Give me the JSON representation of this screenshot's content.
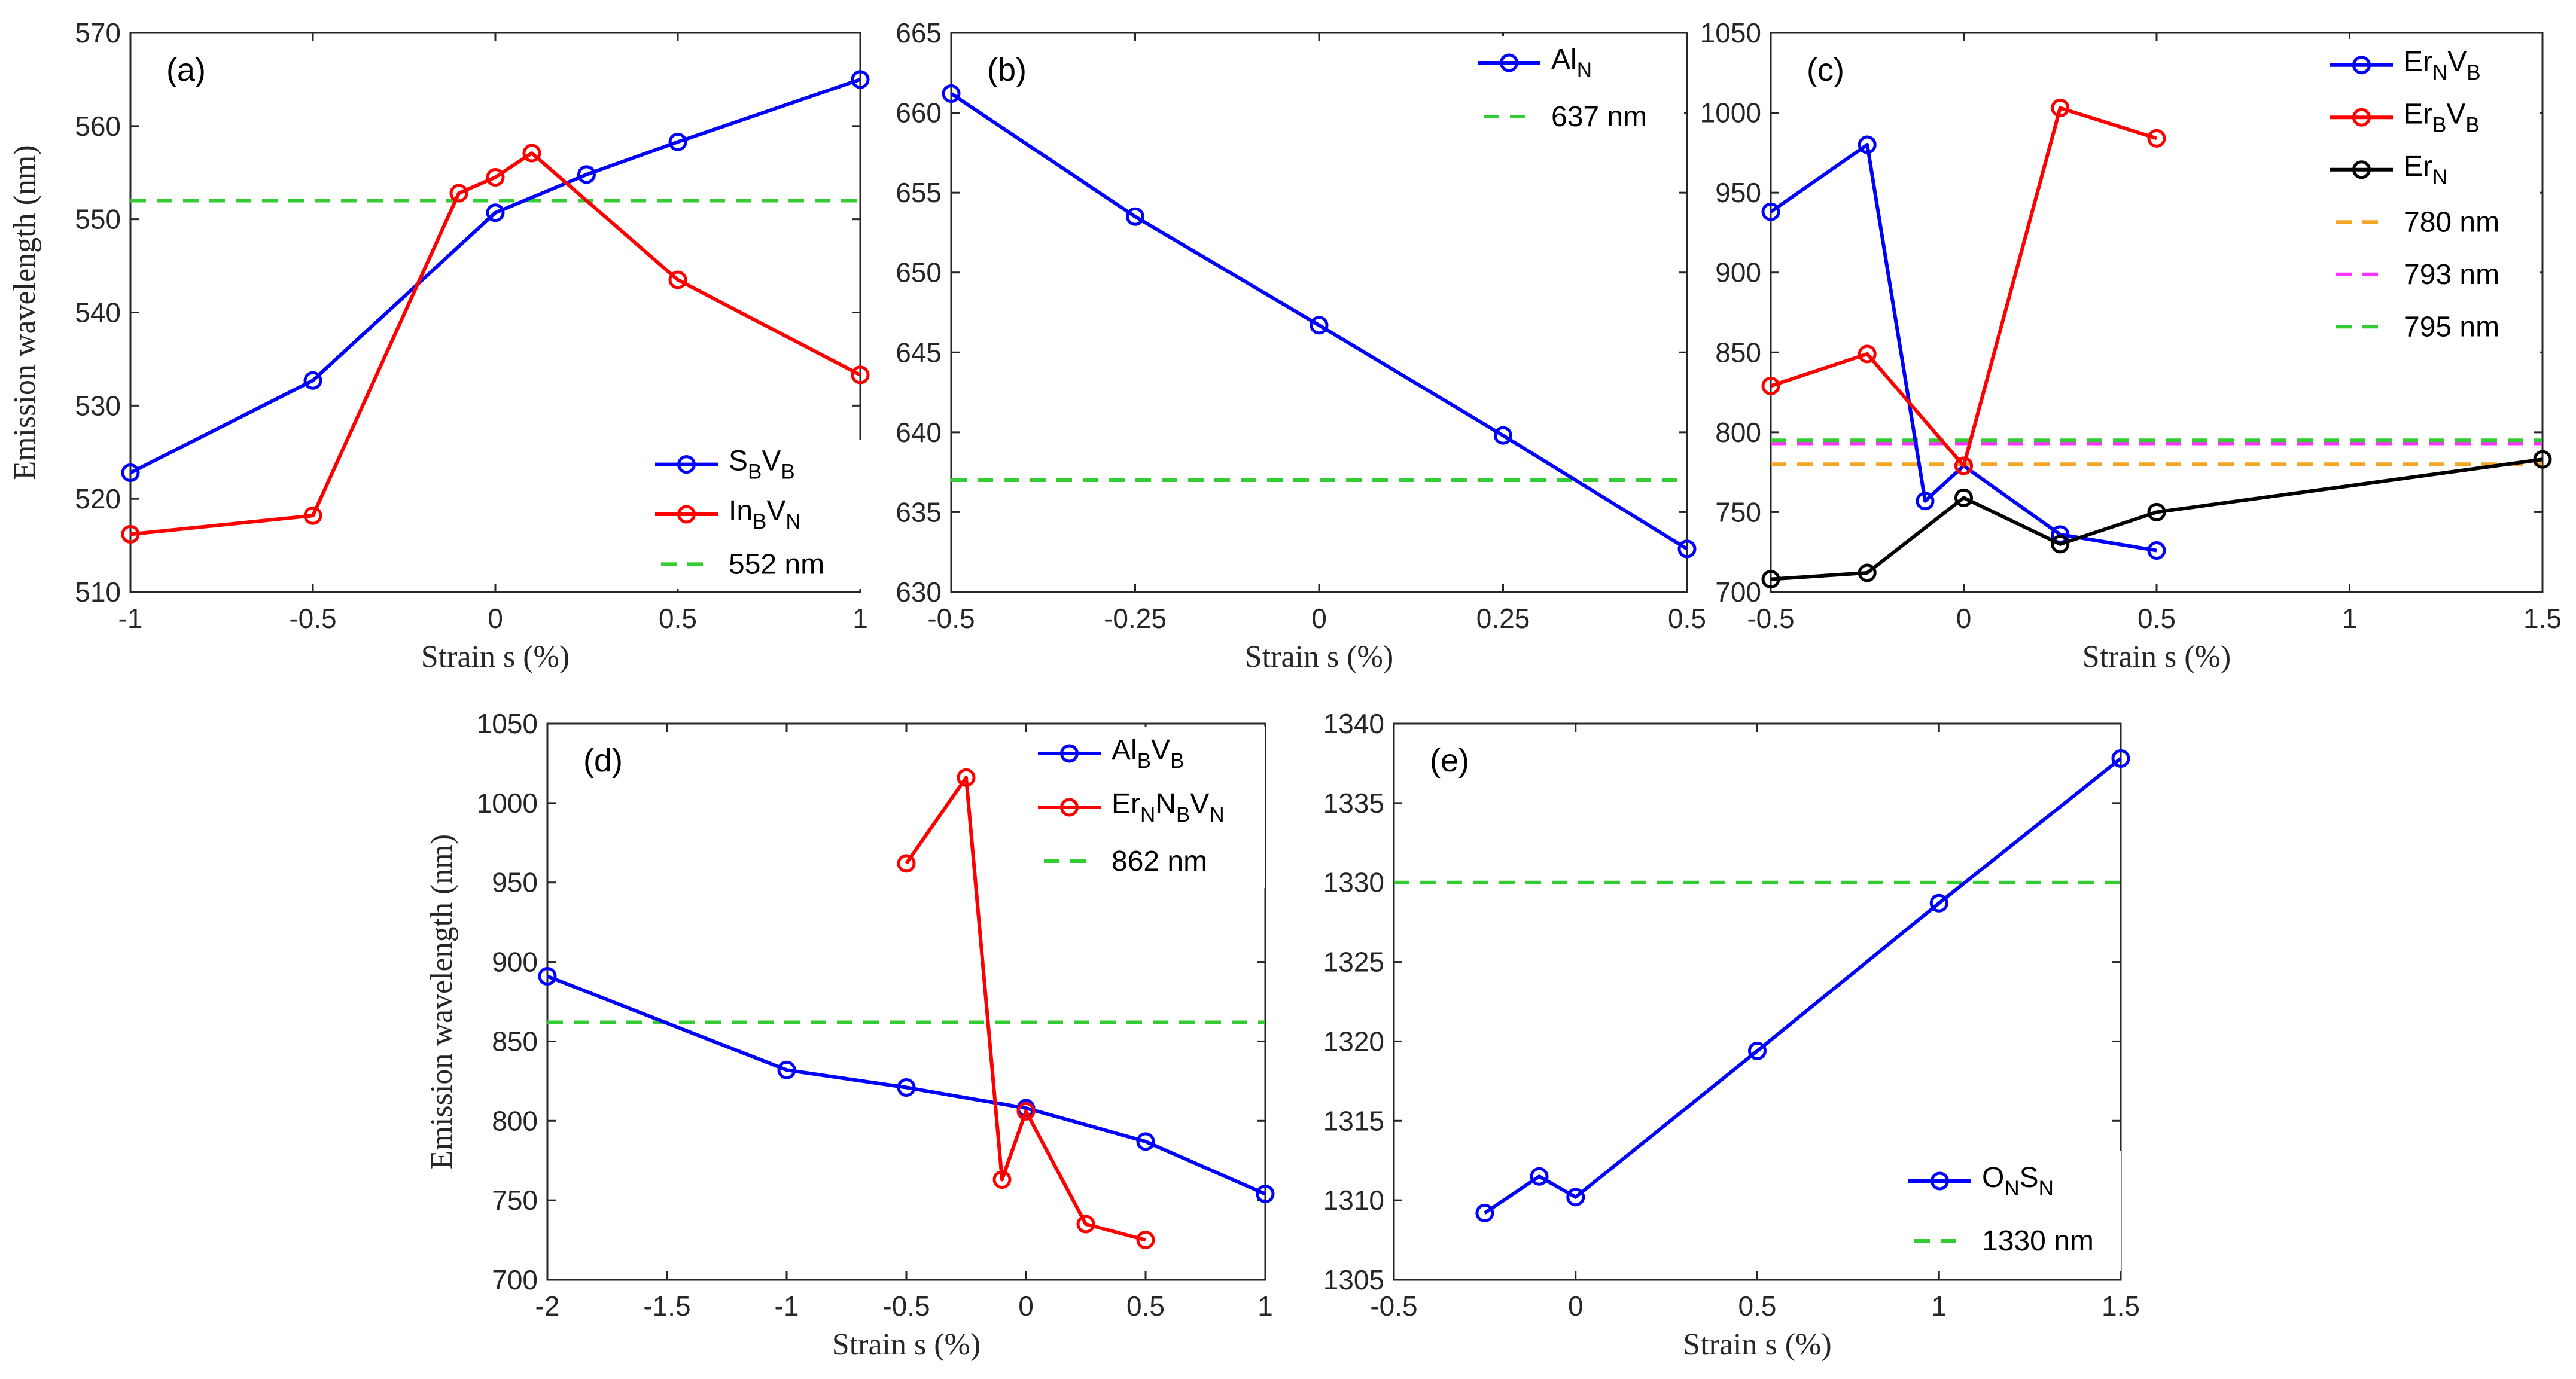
{
  "chart_data": [
    {
      "id": "a",
      "type": "line",
      "panel_label": "(a)",
      "xlabel": "Strain s (%)",
      "ylabel": "Emission wavelength (nm)",
      "xlim": [
        -1,
        1
      ],
      "ylim": [
        510,
        570
      ],
      "xticks": [
        -1,
        -0.5,
        0,
        0.5,
        1
      ],
      "xtick_labels": [
        "-1",
        "-0.5",
        "0",
        "0.5",
        "1"
      ],
      "yticks": [
        510,
        520,
        530,
        540,
        550,
        560,
        570
      ],
      "ytick_labels": [
        "510",
        "520",
        "530",
        "540",
        "550",
        "560",
        "570"
      ],
      "legend_position": "bottom-right",
      "series": [
        {
          "name": "SBVB",
          "label_parts": [
            [
              "S",
              ""
            ],
            [
              "B",
              "sub"
            ],
            [
              "V",
              ""
            ],
            [
              "B",
              "sub"
            ]
          ],
          "color": "#0000ff",
          "x": [
            -1,
            -0.5,
            0,
            0.25,
            0.5,
            1
          ],
          "y": [
            522.8,
            532.7,
            550.7,
            554.8,
            558.3,
            565
          ]
        },
        {
          "name": "InBVN",
          "label_parts": [
            [
              "In",
              ""
            ],
            [
              "B",
              "sub"
            ],
            [
              "V",
              ""
            ],
            [
              "N",
              "sub"
            ]
          ],
          "color": "#ff0000",
          "x": [
            -1,
            -0.5,
            -0.1,
            0,
            0.1,
            0.5,
            1
          ],
          "y": [
            516.2,
            518.2,
            552.8,
            554.5,
            557.1,
            543.5,
            533.3
          ]
        }
      ],
      "reference_lines": [
        {
          "label": "552 nm",
          "value": 552,
          "color": "#33cc33"
        }
      ]
    },
    {
      "id": "b",
      "type": "line",
      "panel_label": "(b)",
      "xlabel": "Strain s (%)",
      "ylabel": "",
      "xlim": [
        -0.5,
        0.5
      ],
      "ylim": [
        630,
        665
      ],
      "xticks": [
        -0.5,
        -0.25,
        0,
        0.25,
        0.5
      ],
      "xtick_labels": [
        "-0.5",
        "-0.25",
        "0",
        "0.25",
        "0.5"
      ],
      "yticks": [
        630,
        635,
        640,
        645,
        650,
        655,
        660,
        665
      ],
      "ytick_labels": [
        "630",
        "635",
        "640",
        "645",
        "650",
        "655",
        "660",
        "665"
      ],
      "legend_position": "top-right",
      "series": [
        {
          "name": "AlN",
          "label_parts": [
            [
              "Al",
              ""
            ],
            [
              "N",
              "sub"
            ]
          ],
          "color": "#0000ff",
          "x": [
            -0.5,
            -0.25,
            0,
            0.25,
            0.5
          ],
          "y": [
            661.2,
            653.5,
            646.7,
            639.8,
            632.7
          ]
        }
      ],
      "reference_lines": [
        {
          "label": "637 nm",
          "value": 637,
          "color": "#33cc33"
        }
      ]
    },
    {
      "id": "c",
      "type": "line",
      "panel_label": "(c)",
      "xlabel": "Strain s (%)",
      "ylabel": "",
      "xlim": [
        -0.5,
        1.5
      ],
      "ylim": [
        700,
        1050
      ],
      "xticks": [
        -0.5,
        0,
        0.5,
        1,
        1.5
      ],
      "xtick_labels": [
        "-0.5",
        "0",
        "0.5",
        "1",
        "1.5"
      ],
      "yticks": [
        700,
        750,
        800,
        850,
        900,
        950,
        1000,
        1050
      ],
      "ytick_labels": [
        "700",
        "750",
        "800",
        "850",
        "900",
        "950",
        "1000",
        "1050"
      ],
      "legend_position": "top-right",
      "series": [
        {
          "name": "ErNVB",
          "label_parts": [
            [
              "Er",
              ""
            ],
            [
              "N",
              "sub"
            ],
            [
              "V",
              ""
            ],
            [
              "B",
              "sub"
            ]
          ],
          "color": "#0000ff",
          "x": [
            -0.5,
            -0.25,
            -0.1,
            0,
            0.25,
            0.5
          ],
          "y": [
            938,
            980,
            757,
            779,
            736,
            726
          ]
        },
        {
          "name": "ErBVB",
          "label_parts": [
            [
              "Er",
              ""
            ],
            [
              "B",
              "sub"
            ],
            [
              "V",
              ""
            ],
            [
              "B",
              "sub"
            ]
          ],
          "color": "#ff0000",
          "x": [
            -0.5,
            -0.25,
            0,
            0.25,
            0.5
          ],
          "y": [
            829,
            849,
            779,
            1003,
            984
          ]
        },
        {
          "name": "ErN",
          "label_parts": [
            [
              "Er",
              ""
            ],
            [
              "N",
              "sub"
            ]
          ],
          "color": "#000000",
          "x": [
            -0.5,
            -0.25,
            0,
            0.25,
            0.5,
            1.5
          ],
          "y": [
            708,
            712,
            759,
            730,
            750,
            783
          ]
        }
      ],
      "reference_lines": [
        {
          "label": "780 nm",
          "value": 780,
          "color": "#f5a623"
        },
        {
          "label": "793 nm",
          "value": 793,
          "color": "#ff33ff"
        },
        {
          "label": "795 nm",
          "value": 795,
          "color": "#33cc33"
        }
      ]
    },
    {
      "id": "d",
      "type": "line",
      "panel_label": "(d)",
      "xlabel": "Strain s (%)",
      "ylabel": "Emission wavelength (nm)",
      "xlim": [
        -2,
        1
      ],
      "ylim": [
        700,
        1050
      ],
      "xticks": [
        -2,
        -1.5,
        -1,
        -0.5,
        0,
        0.5,
        1
      ],
      "xtick_labels": [
        "-2",
        "-1.5",
        "-1",
        "-0.5",
        "0",
        "0.5",
        "1"
      ],
      "yticks": [
        700,
        750,
        800,
        850,
        900,
        950,
        1000,
        1050
      ],
      "ytick_labels": [
        "700",
        "750",
        "800",
        "850",
        "900",
        "950",
        "1000",
        "1050"
      ],
      "legend_position": "top-right",
      "series": [
        {
          "name": "AlBVB",
          "label_parts": [
            [
              "Al",
              ""
            ],
            [
              "B",
              "sub"
            ],
            [
              "V",
              ""
            ],
            [
              "B",
              "sub"
            ]
          ],
          "color": "#0000ff",
          "x": [
            -2,
            -1,
            -0.5,
            0,
            0.5,
            1
          ],
          "y": [
            891,
            832,
            821,
            808,
            787,
            754
          ]
        },
        {
          "name": "ErNNBVN",
          "label_parts": [
            [
              "Er",
              ""
            ],
            [
              "N",
              "sub"
            ],
            [
              "N",
              ""
            ],
            [
              "B",
              "sub"
            ],
            [
              "V",
              ""
            ],
            [
              "N",
              "sub"
            ]
          ],
          "color": "#ff0000",
          "x": [
            -0.5,
            -0.25,
            -0.1,
            0,
            0.25,
            0.5
          ],
          "y": [
            962,
            1016,
            763,
            806,
            735,
            725
          ]
        }
      ],
      "reference_lines": [
        {
          "label": "862 nm",
          "value": 862,
          "color": "#33cc33"
        }
      ]
    },
    {
      "id": "e",
      "type": "line",
      "panel_label": "(e)",
      "xlabel": "Strain s (%)",
      "ylabel": "",
      "xlim": [
        -0.5,
        1.5
      ],
      "ylim": [
        1305,
        1340
      ],
      "xticks": [
        -0.5,
        0,
        0.5,
        1,
        1.5
      ],
      "xtick_labels": [
        "-0.5",
        "0",
        "0.5",
        "1",
        "1.5"
      ],
      "yticks": [
        1305,
        1310,
        1315,
        1320,
        1325,
        1330,
        1335,
        1340
      ],
      "ytick_labels": [
        "1305",
        "1310",
        "1315",
        "1320",
        "1325",
        "1330",
        "1335",
        "1340"
      ],
      "legend_position": "bottom-right",
      "series": [
        {
          "name": "ONSN",
          "label_parts": [
            [
              "O",
              ""
            ],
            [
              "N",
              "sub"
            ],
            [
              "S",
              ""
            ],
            [
              "N",
              "sub"
            ]
          ],
          "color": "#0000ff",
          "x": [
            -0.25,
            -0.1,
            0,
            0.5,
            1,
            1.5
          ],
          "y": [
            1309.2,
            1311.5,
            1310.2,
            1319.4,
            1328.7,
            1337.8
          ]
        }
      ],
      "reference_lines": [
        {
          "label": "1330 nm",
          "value": 1330,
          "color": "#33cc33"
        }
      ]
    }
  ]
}
